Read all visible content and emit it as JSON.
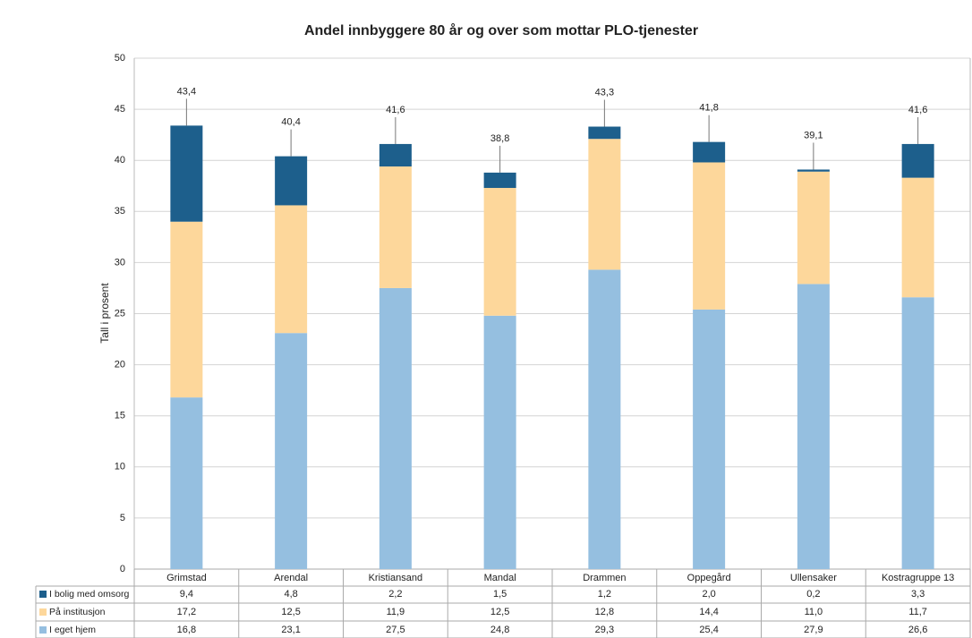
{
  "chart_data": {
    "type": "stacked_bar",
    "title": "Andel innbyggere 80 år og over som mottar PLO-tjenester",
    "y_label": "Tall i prosent",
    "categories": [
      "Grimstad",
      "Arendal",
      "Kristiansand",
      "Mandal",
      "Drammen",
      "Oppegård",
      "Ullensaker",
      "Kostragruppe 13"
    ],
    "series": [
      {
        "name": "I eget hjem",
        "color": "#95bfe0",
        "values": [
          16.8,
          23.1,
          27.5,
          24.8,
          29.3,
          25.4,
          27.9,
          26.6
        ],
        "value_labels": [
          "16,8",
          "23,1",
          "27,5",
          "24,8",
          "29,3",
          "25,4",
          "27,9",
          "26,6"
        ]
      },
      {
        "name": "På institusjon",
        "color": "#fdd79b",
        "values": [
          17.2,
          12.5,
          11.9,
          12.5,
          12.8,
          14.4,
          11.0,
          11.7
        ],
        "value_labels": [
          "17,2",
          "12,5",
          "11,9",
          "12,5",
          "12,8",
          "14,4",
          "11,0",
          "11,7"
        ]
      },
      {
        "name": "I bolig med omsorg",
        "color": "#1d5f8c",
        "values": [
          9.4,
          4.8,
          2.2,
          1.5,
          1.2,
          2.0,
          0.2,
          3.3
        ],
        "value_labels": [
          "9,4",
          "4,8",
          "2,2",
          "1,5",
          "1,2",
          "2,0",
          "0,2",
          "3,3"
        ]
      }
    ],
    "totals": {
      "values": [
        43.4,
        40.4,
        41.6,
        38.8,
        43.3,
        41.8,
        39.1,
        41.6
      ],
      "value_labels": [
        "43,4",
        "40,4",
        "41,6",
        "38,8",
        "43,3",
        "41,8",
        "39,1",
        "41,6"
      ]
    },
    "ylim": [
      0,
      50
    ],
    "yticks": [
      0,
      5,
      10,
      15,
      20,
      25,
      30,
      35,
      40,
      45,
      50
    ],
    "grid": true
  }
}
